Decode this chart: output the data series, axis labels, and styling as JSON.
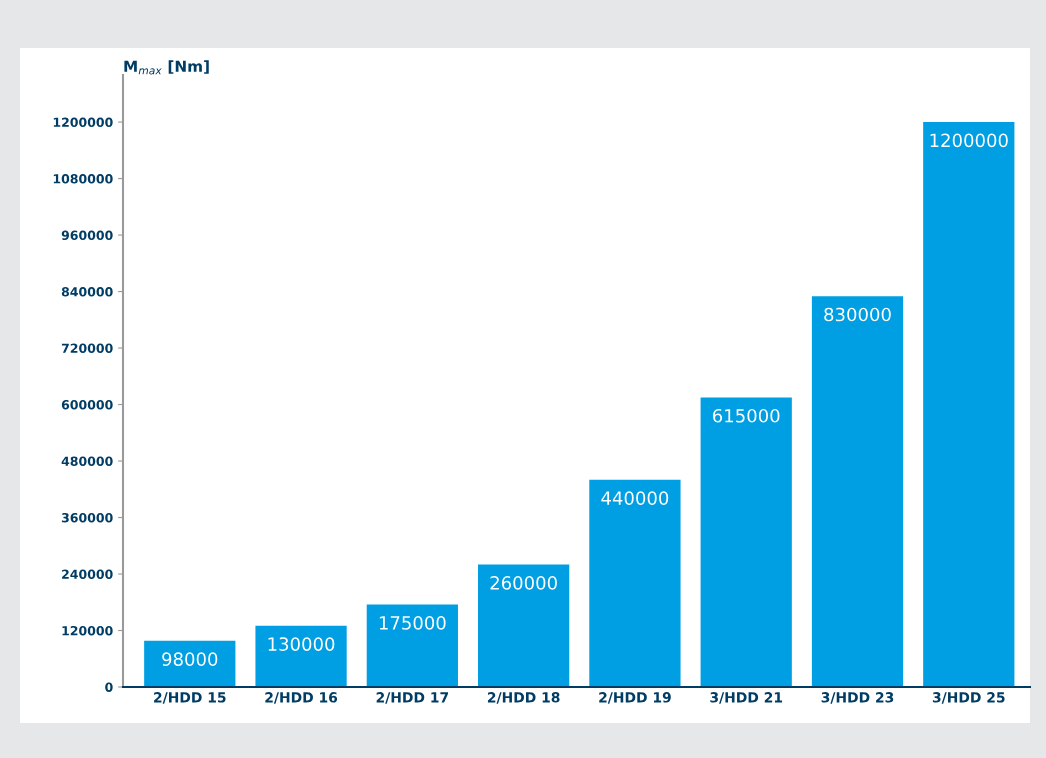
{
  "chart_data": {
    "type": "bar",
    "ylabel": "M$_{max}$ [Nm]",
    "categories": [
      "2/HDD 15",
      "2/HDD 16",
      "2/HDD 17",
      "2/HDD 18",
      "2/HDD 19",
      "3/HDD 21",
      "3/HDD 23",
      "3/HDD 25"
    ],
    "values": [
      98000,
      130000,
      175000,
      260000,
      440000,
      615000,
      830000,
      1200000
    ],
    "color": "#009fe3",
    "ylim": [
      0,
      1300000
    ],
    "yticks": [
      0,
      120000,
      240000,
      360000,
      480000,
      600000,
      720000,
      840000,
      960000,
      1080000,
      1200000
    ],
    "data_labels": true,
    "grid": false,
    "legend": false
  }
}
